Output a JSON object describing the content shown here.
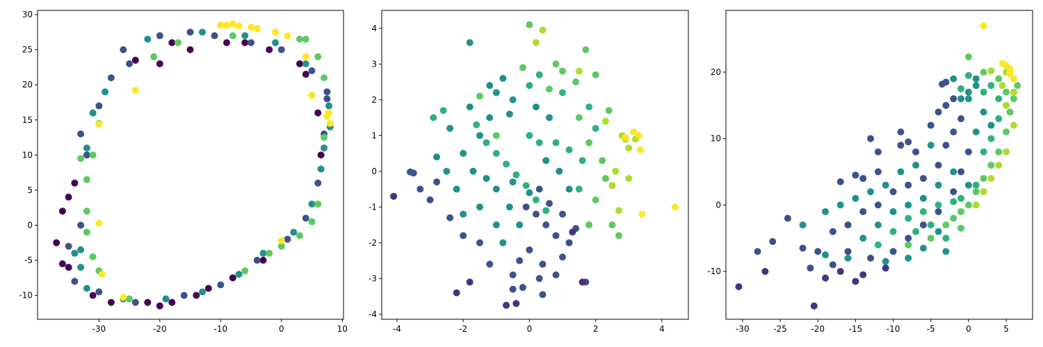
{
  "chart_data": [
    {
      "type": "scatter",
      "xlim": [
        -40.1,
        10.2
      ],
      "ylim": [
        -13.4,
        30.6
      ],
      "xticks": [
        -30,
        -20,
        -10,
        0,
        10
      ],
      "yticks": [
        -10,
        -5,
        0,
        5,
        10,
        15,
        20,
        25,
        30
      ],
      "series": [
        {
          "color": "#440154",
          "x": [
            -37,
            -36,
            -35,
            -36,
            -35,
            -34,
            -28,
            -22,
            -18,
            -20,
            -14,
            -8,
            -3,
            -6,
            -9,
            -2,
            3,
            4,
            -15,
            -20,
            -24,
            -18,
            -31,
            6,
            6.5,
            -12
          ],
          "values": [
            -2.5,
            -5.5,
            -6,
            2,
            4,
            6,
            -11,
            -11,
            -11,
            -11.5,
            -10,
            -7.5,
            -5,
            26,
            26,
            25,
            23,
            21.5,
            25,
            23,
            23.5,
            26,
            -10,
            16,
            10,
            -9
          ]
        },
        {
          "color": "#3b528b",
          "x": [
            -34,
            -33,
            -32,
            -30,
            -28,
            -26,
            -20,
            -15,
            -11,
            -5,
            0,
            5,
            7.5,
            7,
            6,
            4,
            1,
            -4,
            -10,
            -16,
            -24,
            -30,
            -35,
            -33,
            -25,
            7.5
          ],
          "values": [
            -8,
            0,
            10,
            17,
            21,
            25,
            27,
            27.5,
            27,
            26,
            25,
            22,
            18,
            13,
            6,
            1,
            -2,
            -5,
            -8.5,
            -10,
            -11,
            -9.5,
            -3,
            13,
            23,
            19
          ]
        },
        {
          "color": "#21918c",
          "x": [
            -34,
            -33,
            -32,
            -29,
            -22,
            -13,
            -6,
            -1,
            4,
            7.8,
            6.5,
            5,
            2,
            -7,
            -13,
            -19,
            -26,
            -32,
            -33,
            -31,
            8,
            -3,
            7
          ],
          "values": [
            -4,
            -6,
            11,
            19,
            26.5,
            27.5,
            27,
            26,
            23,
            17,
            8,
            3,
            -1,
            -7,
            -9.5,
            -10.5,
            -10.5,
            -9,
            -3.5,
            16,
            14,
            -4,
            11
          ]
        },
        {
          "color": "#5ec962",
          "x": [
            -30,
            -31,
            -33,
            -32,
            -32,
            -30,
            -31,
            -21,
            -17,
            -8,
            4,
            3,
            6,
            7,
            6,
            3,
            0,
            -2,
            -6,
            -25,
            7,
            -32,
            5
          ],
          "values": [
            14.5,
            10,
            9.5,
            6.5,
            2,
            -6.5,
            -4.5,
            24,
            26,
            27,
            26.5,
            26.5,
            24,
            21,
            3,
            -1.5,
            -3,
            -4,
            -6.5,
            -10.5,
            12.5,
            -1,
            0.5
          ]
        },
        {
          "color": "#fde725",
          "x": [
            -10,
            -9,
            -8,
            -7,
            -5,
            -4,
            -1,
            1,
            4,
            7.5,
            8,
            7.8,
            -24,
            -30,
            -29.5,
            -30,
            -26,
            0,
            5
          ],
          "values": [
            28.5,
            28.5,
            28.7,
            28.4,
            28.2,
            28,
            27.5,
            27,
            24,
            15.5,
            14.5,
            16,
            19.2,
            0.3,
            -7,
            14.4,
            -10.3,
            -2.2,
            18.5
          ]
        }
      ]
    },
    {
      "type": "scatter",
      "xlim": [
        -4.46,
        4.8
      ],
      "ylim": [
        -4.14,
        4.5
      ],
      "xticks": [
        -4,
        -2,
        0,
        2,
        4
      ],
      "yticks": [
        -4,
        -3,
        -2,
        -1,
        0,
        1,
        2,
        3,
        4
      ],
      "series": [
        {
          "color": "#3b528b",
          "x": [
            0.2,
            0.5,
            0.8,
            1.2,
            0,
            -0.3,
            0.4,
            1,
            -0.5,
            0.3,
            0.8,
            1.7,
            -1.2,
            -1.5,
            -2,
            -2.4,
            -3,
            -3.3,
            -3.5,
            -3.6,
            -2.8,
            0.6,
            1,
            1.4,
            -0.1,
            0.3,
            -0.5,
            0.4,
            -0.2
          ],
          "values": [
            -1.2,
            -1.5,
            -1.8,
            -2,
            -2.2,
            -2.5,
            -2.6,
            -2.4,
            -2.9,
            -3,
            -2.9,
            -3.1,
            -2.6,
            -2,
            -1.8,
            -1.3,
            -0.8,
            -0.5,
            -0.05,
            -0.02,
            -0.3,
            -0.9,
            -1.2,
            -1.6,
            -1,
            -0.5,
            -3.3,
            -3.45,
            -3.25
          ]
        },
        {
          "color": "#46327e",
          "x": [
            -4.1,
            -0.7,
            -0.4,
            -2.2,
            -1.8,
            1.6,
            1.3
          ],
          "values": [
            -0.7,
            -3.75,
            -3.7,
            -3.4,
            -3.1,
            -3.1,
            -1.7
          ]
        },
        {
          "color": "#21918c",
          "x": [
            -2,
            -1.5,
            -1.8,
            -1.2,
            -2.5,
            -2.2,
            -1.5,
            -1,
            -0.6,
            -1,
            -0.5,
            -1.3,
            -2.8,
            -2.4,
            -1,
            -0.8,
            -0.5,
            -1.8,
            0,
            -0.3,
            -1.7,
            -2,
            -0.8,
            -1.2,
            -0.6,
            0.2,
            0.6,
            0.5,
            0.9,
            1.2
          ],
          "values": [
            0.5,
            1,
            1.8,
            1.5,
            0,
            -0.5,
            -1,
            -1.5,
            -1,
            -0.5,
            -0.3,
            -0.2,
            0.4,
            1.2,
            2.2,
            2.6,
            2,
            3.6,
            -0.6,
            -1.5,
            0,
            -1.2,
            -2,
            2.4,
            1.6,
            1.8,
            1.5,
            0.3,
            0,
            -0.5
          ]
        },
        {
          "color": "#2db27d",
          "x": [
            -1.3,
            -1,
            -0.7,
            -0.4,
            -0.1,
            0.2,
            0.5,
            -1.6,
            0,
            0.3,
            0.8,
            1.2,
            1.6,
            1.5,
            0,
            0.3,
            1.8,
            2,
            -2.6,
            -2.9,
            1
          ],
          "values": [
            0.8,
            0.5,
            0.2,
            -0.1,
            -0.4,
            -0.8,
            -1.1,
            1.3,
            1,
            0.8,
            0.8,
            0.6,
            0.3,
            -0.5,
            2.4,
            2.7,
            1.8,
            1.2,
            1.7,
            1.5,
            2.2
          ]
        },
        {
          "color": "#5ec962",
          "x": [
            0.6,
            1,
            1.4,
            0.8,
            0,
            -0.2,
            1.8,
            2.2,
            2.3,
            2,
            2.5,
            2.7,
            1.8,
            2.4,
            1.5,
            1.7,
            2,
            -1.5,
            -1
          ],
          "values": [
            2.3,
            2.8,
            2.5,
            3,
            4.1,
            2.9,
            0.8,
            0.3,
            -0.2,
            -0.8,
            -1.5,
            -1.8,
            -1.5,
            1.7,
            1.5,
            3.4,
            2.7,
            2.1,
            1
          ]
        },
        {
          "color": "#addc30",
          "x": [
            0.4,
            0.2,
            2.8,
            2.6,
            2.5,
            3,
            2.7,
            2.9,
            3,
            3.2,
            2.3,
            1.5
          ],
          "values": [
            3.95,
            3.6,
            1,
            0,
            -0.4,
            -0.2,
            -1.1,
            0.9,
            0.65,
            0.9,
            1.4,
            2.8
          ]
        },
        {
          "color": "#fde725",
          "x": [
            4.4,
            3.4,
            3.3,
            3.15,
            3.35,
            2.9
          ],
          "values": [
            -1,
            -1.2,
            1,
            1.1,
            0.6,
            0.95
          ]
        }
      ]
    },
    {
      "type": "scatter",
      "xlim": [
        -32.2,
        8.5
      ],
      "ylim": [
        -17.2,
        29.3
      ],
      "xticks": [
        -30,
        -25,
        -20,
        -15,
        -10,
        -5,
        0,
        5
      ],
      "yticks": [
        -10,
        0,
        10,
        20
      ],
      "series": [
        {
          "color": "#46327e",
          "x": [
            -30.5,
            -27,
            -20.5,
            -19,
            -17,
            -15,
            -11,
            -14
          ],
          "values": [
            -12.3,
            -10,
            -15.2,
            -11,
            -10,
            -11.5,
            -9.5,
            -10.5
          ]
        },
        {
          "color": "#3b528b",
          "x": [
            -26,
            -28,
            -24,
            -22,
            -20,
            -18,
            -16,
            -14,
            -12,
            -10,
            -8,
            -6,
            -4,
            -3,
            -2,
            -1,
            -5,
            -4,
            -3,
            -2,
            -7,
            -9,
            -12,
            -14,
            -16,
            -13,
            -10,
            -8,
            -6,
            -4,
            -2,
            -1,
            0,
            -18,
            -21,
            -12,
            -13,
            -15,
            -17,
            -3,
            -3.5,
            -8,
            -9
          ],
          "values": [
            -5.5,
            -7,
            -2,
            -6.5,
            -7,
            -4,
            -3,
            -1,
            0,
            2,
            3,
            4,
            6,
            9,
            11,
            13,
            12,
            14,
            15,
            16,
            8,
            9,
            5,
            4,
            -7,
            -8,
            -7,
            -5,
            -3,
            -1,
            2,
            5,
            8,
            -9,
            -9.5,
            8,
            10,
            4.5,
            3.5,
            18.5,
            18.2,
            9.5,
            11
          ]
        },
        {
          "color": "#21918c",
          "x": [
            -22,
            -19,
            -17,
            -15,
            -13,
            -11,
            -9,
            -7,
            -5,
            -1,
            0,
            1,
            -2,
            -14,
            -12,
            -10,
            -8,
            -6,
            -4,
            -2,
            0,
            -19,
            -16,
            -11,
            -8,
            -6,
            -4,
            2,
            3,
            1,
            -3,
            1,
            0
          ],
          "values": [
            -3,
            -1,
            0,
            1,
            2,
            3,
            5,
            6,
            9,
            16,
            17,
            18,
            19,
            -5,
            -3,
            -1,
            0,
            1,
            3,
            5,
            3,
            -7.5,
            -8,
            -8.5,
            -8,
            -6.5,
            -4,
            14,
            12,
            11,
            -7,
            19,
            16
          ]
        },
        {
          "color": "#2db27d",
          "x": [
            -8,
            -6,
            -4,
            -2,
            -1,
            -10,
            -12,
            -7,
            -5,
            2,
            3,
            4,
            2,
            3,
            -3,
            1,
            4,
            0,
            -1
          ],
          "values": [
            -2,
            -1,
            0,
            0.5,
            1,
            -4,
            -6,
            -4,
            -3,
            8,
            10,
            13,
            17,
            18,
            -5,
            3,
            16,
            19.5,
            17.5
          ]
        },
        {
          "color": "#5ec962",
          "x": [
            0,
            0,
            1,
            2,
            3,
            4,
            5,
            -2,
            -1,
            -3,
            4,
            5,
            6,
            5.5,
            -5,
            -8,
            2,
            -1,
            6.5
          ],
          "values": [
            22.3,
            0,
            2,
            4,
            6,
            8,
            11,
            -2,
            -1,
            -3,
            19,
            17,
            16,
            14,
            -5,
            -6,
            20,
            -3.5,
            18
          ]
        },
        {
          "color": "#addc30",
          "x": [
            1,
            2,
            3,
            4,
            5,
            6,
            5,
            4.5,
            5,
            6,
            3
          ],
          "values": [
            0,
            2,
            4,
            6,
            8,
            12,
            15,
            18,
            20,
            17,
            20.2
          ]
        },
        {
          "color": "#fde725",
          "x": [
            2,
            5,
            5.5,
            4.5,
            6,
            5.5
          ],
          "values": [
            27,
            21,
            20.5,
            21.3,
            19,
            19.8
          ]
        }
      ]
    }
  ]
}
